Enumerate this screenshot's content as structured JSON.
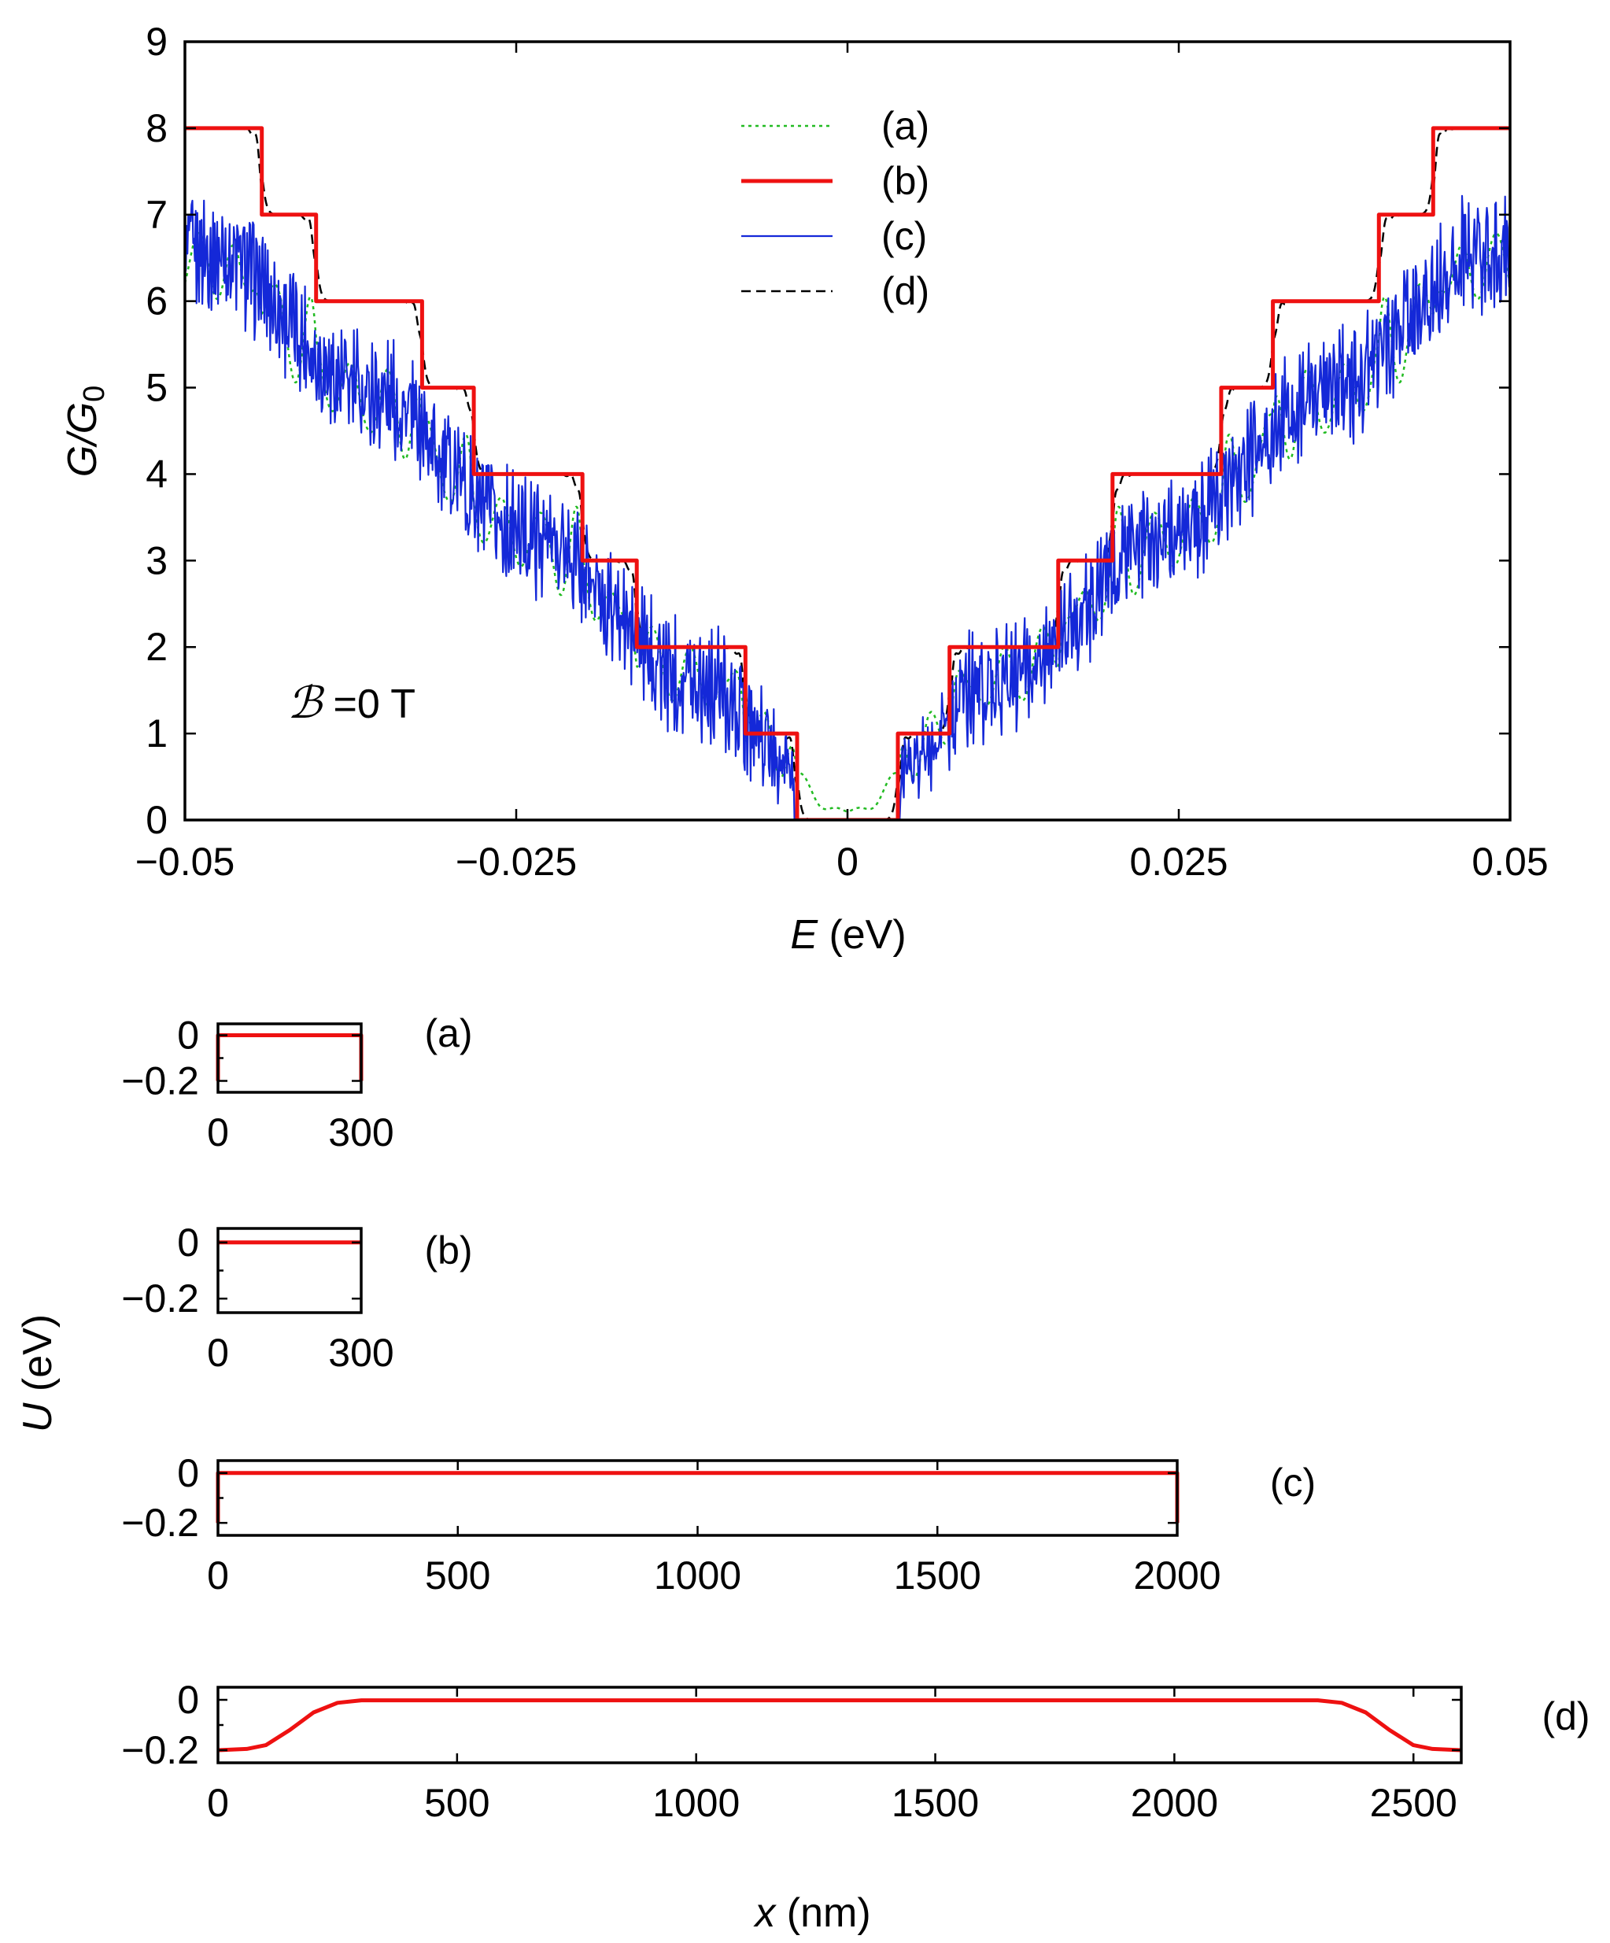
{
  "chart_data": [
    {
      "type": "line",
      "title": "",
      "xlabel_var": "E",
      "xlabel_unit": " (eV)",
      "ylabel": "G/G",
      "ylabel_sub": "0",
      "xlim": [
        -0.05,
        0.05
      ],
      "ylim": [
        0,
        9
      ],
      "xticks": [
        -0.05,
        -0.025,
        0,
        0.025,
        0.05
      ],
      "xtick_labels": [
        "−0.05",
        "−0.025",
        "0",
        "0.025",
        "0.05"
      ],
      "yticks": [
        0,
        1,
        2,
        3,
        4,
        5,
        6,
        7,
        8,
        9
      ],
      "ytick_labels": [
        "0",
        "1",
        "2",
        "3",
        "4",
        "5",
        "6",
        "7",
        "8",
        "9"
      ],
      "annotation_symbol": "ℬ",
      "annotation_text": " =0 T",
      "legend_position": "top-center",
      "step_edges_eV": [
        0.0038,
        0.0077,
        0.0159,
        0.02,
        0.0282,
        0.0321,
        0.0401,
        0.0442
      ],
      "series": [
        {
          "name": "(a)",
          "label": "(a)",
          "color": "#22bb22",
          "dash": "4,5",
          "width": 2.5,
          "description": "smooth conductance with broad resonances"
        },
        {
          "name": "(b)",
          "label": "(b)",
          "color": "#ee1111",
          "dash": "",
          "width": 5,
          "description": "perfect quantized steps"
        },
        {
          "name": "(c)",
          "label": "(c)",
          "color": "#1428d8",
          "dash": "",
          "width": 2.2,
          "description": "strongly oscillating conductance"
        },
        {
          "name": "(d)",
          "label": "(d)",
          "color": "#000000",
          "dash": "12,7",
          "width": 2.5,
          "description": "slightly smoothed steps"
        }
      ]
    },
    {
      "type": "line",
      "panel": "(a)",
      "label": "(a)",
      "xlim": [
        0,
        300
      ],
      "ylim": [
        -0.25,
        0.05
      ],
      "xtick_labels": [
        "0",
        "300"
      ],
      "ytick_labels": [
        "0",
        "−0.2"
      ],
      "x": [
        0,
        0,
        300,
        300
      ],
      "y": [
        -0.2,
        0,
        0,
        -0.2
      ]
    },
    {
      "type": "line",
      "panel": "(b)",
      "label": "(b)",
      "xlim": [
        0,
        300
      ],
      "ylim": [
        -0.25,
        0.05
      ],
      "xtick_labels": [
        "0",
        "300"
      ],
      "ytick_labels": [
        "0",
        "−0.2"
      ],
      "x": [
        0,
        300
      ],
      "y": [
        0,
        0
      ]
    },
    {
      "type": "line",
      "panel": "(c)",
      "label": "(c)",
      "xlim": [
        0,
        2000
      ],
      "ylim": [
        -0.25,
        0.05
      ],
      "xtick_labels": [
        "0",
        "500",
        "1000",
        "1500",
        "2000"
      ],
      "ytick_labels": [
        "0",
        "−0.2"
      ],
      "x": [
        0,
        0,
        2000,
        2000
      ],
      "y": [
        -0.2,
        0,
        0,
        -0.2
      ]
    },
    {
      "type": "line",
      "panel": "(d)",
      "label": "(d)",
      "xlim": [
        0,
        2600
      ],
      "ylim": [
        -0.25,
        0.05
      ],
      "xtick_labels": [
        "0",
        "500",
        "1000",
        "1500",
        "2000",
        "2500"
      ],
      "ytick_labels": [
        "0",
        "−0.2"
      ],
      "x": [
        0,
        60,
        100,
        150,
        200,
        250,
        300,
        2300,
        2350,
        2400,
        2450,
        2500,
        2540,
        2600
      ],
      "y": [
        -0.2,
        -0.195,
        -0.18,
        -0.12,
        -0.05,
        -0.012,
        -0.002,
        -0.002,
        -0.012,
        -0.05,
        -0.12,
        -0.18,
        -0.195,
        -0.2
      ]
    }
  ],
  "shared": {
    "u_ylabel_var": "U",
    "u_ylabel_unit": " (eV)",
    "x_label_var": "x",
    "x_label_unit": " (nm)"
  }
}
